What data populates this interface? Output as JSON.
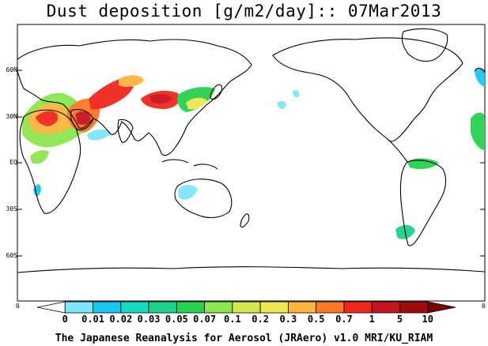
{
  "title": "Dust deposition [g/m2/day]:: 07Mar2013",
  "lat_labels": [
    "60N",
    "30N",
    "EQ",
    "30S",
    "60S"
  ],
  "edge_labels": {
    "left": "0",
    "right": "0"
  },
  "colorbar": {
    "labels": [
      "0",
      "0.01",
      "0.02",
      "0.03",
      "0.05",
      "0.07",
      "0.1",
      "0.2",
      "0.3",
      "0.5",
      "0.7",
      "1",
      "5",
      "10"
    ],
    "colors": [
      "#ffffff",
      "#7fe6ff",
      "#18c7f0",
      "#14dcc0",
      "#1ed28c",
      "#28d250",
      "#8ce650",
      "#d2e650",
      "#f0e650",
      "#ffb43c",
      "#ff7828",
      "#f0281e",
      "#c8141e",
      "#a00a0a",
      "#780000"
    ]
  },
  "footer": "The Japanese Reanalysis for Aerosol (JRAero) v1.0 MRI/KU_RIAM"
}
